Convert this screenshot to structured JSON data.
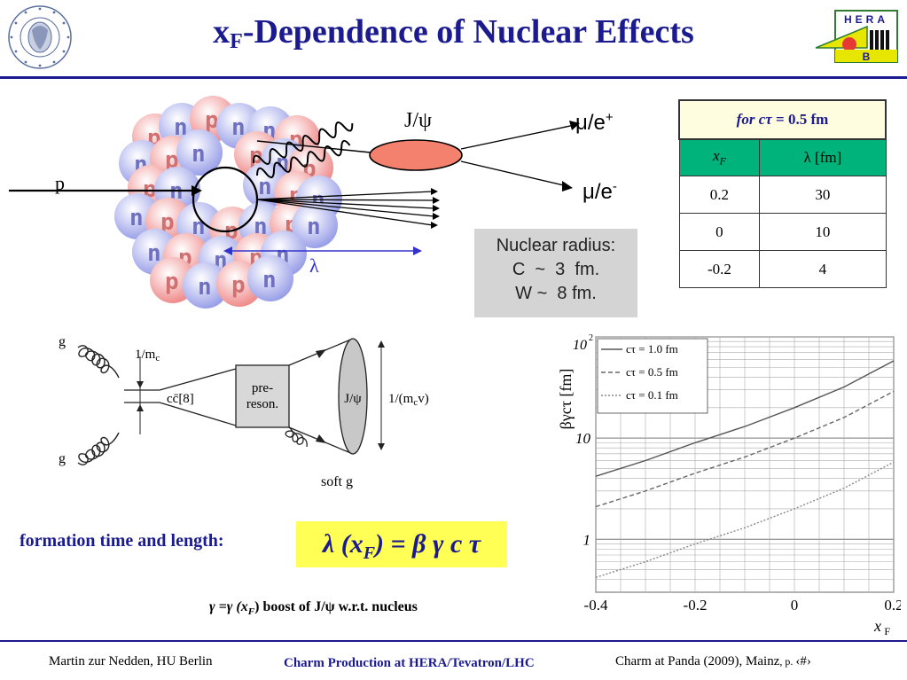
{
  "title": {
    "prefix": "x",
    "sub": "F",
    "rest": "-Dependence of Nuclear Effects"
  },
  "nucleus_diagram": {
    "label_p": "p",
    "label_jpsi": "J/ψ",
    "label_mu_plus": "μ/e",
    "sup_plus": "+",
    "label_mu_minus": "μ/e",
    "sup_minus": "-",
    "label_lambda": "λ",
    "nucleon_p": "p",
    "nucleon_n": "n"
  },
  "radius_box": {
    "line1": "Nuclear radius:",
    "line2": "C  ~  3  fm.",
    "line3": "W ~  8 fm."
  },
  "lambda_table": {
    "caption_prefix": "for c",
    "caption_tau": "τ",
    "caption_suffix": " = 0.5 fm",
    "col1": "x",
    "col1_sub": "F",
    "col2": "λ [fm]",
    "rows": [
      {
        "xf": "0.2",
        "lambda": "30"
      },
      {
        "xf": "0",
        "lambda": "10"
      },
      {
        "xf": "-0.2",
        "lambda": "4"
      }
    ]
  },
  "feynman": {
    "g_top": "g",
    "g_bottom": "g",
    "inv_mc": "1/m",
    "inv_mc_sub": "c",
    "ccbar": "cc̄[8]",
    "preres1": "pre-",
    "preres2": "reson.",
    "jpsi": "J/ψ",
    "inv_mcv": "1/(m",
    "inv_mcv_sub": "c",
    "inv_mcv_end": "v)",
    "soft_g": "soft g"
  },
  "chart_data": {
    "type": "line",
    "ylabel": "βγcτ [fm]",
    "xlabel": "x",
    "xlabel_sub": "F",
    "xlim": [
      -0.4,
      0.2
    ],
    "ylim": [
      0.3,
      100
    ],
    "yscale": "log",
    "grid": true,
    "legend_placement": "top-left",
    "x_ticks": [
      "-0.4",
      "-0.2",
      "0",
      "0.2"
    ],
    "y_ticks": [
      "1",
      "10",
      "10"
    ],
    "y_top_exp": "2",
    "series": [
      {
        "name": "cτ = 1.0 fm",
        "dash": "solid",
        "color": "#555555",
        "x": [
          -0.4,
          -0.3,
          -0.2,
          -0.1,
          0.0,
          0.1,
          0.2
        ],
        "y": [
          4.2,
          6.0,
          9.0,
          13.0,
          20.0,
          32.0,
          58.0
        ]
      },
      {
        "name": "cτ = 0.5 fm",
        "dash": "dashed",
        "color": "#666666",
        "x": [
          -0.4,
          -0.3,
          -0.2,
          -0.1,
          0.0,
          0.1,
          0.2
        ],
        "y": [
          2.1,
          3.0,
          4.5,
          6.5,
          10.0,
          16.0,
          29.0
        ]
      },
      {
        "name": "cτ = 0.1 fm",
        "dash": "dotted",
        "color": "#888888",
        "x": [
          -0.4,
          -0.3,
          -0.2,
          -0.1,
          0.0,
          0.1,
          0.2
        ],
        "y": [
          0.42,
          0.6,
          0.9,
          1.3,
          2.0,
          3.2,
          5.8
        ]
      }
    ]
  },
  "formation": {
    "label": "formation time and length:",
    "formula": "λ (x",
    "formula_sub": "F",
    "formula_end": ") = β γ c  τ"
  },
  "gamma_note": "γ =γ (x",
  "gamma_note_sub": "F",
  "gamma_note_end": ") boost of J/ψ   w.r.t.  nucleus",
  "footer": {
    "left": "Martin zur Nedden, HU Berlin",
    "center": "Charm Production at HERA/Tevatron/LHC",
    "right": "Charm at Panda (2009), Mainz",
    "page_prefix": ", p. ",
    "page": "‹#›"
  },
  "logos": {
    "seal": "seal-logo",
    "hera_text": "HERA",
    "hera_b": "B"
  },
  "colors": {
    "title": "#1b1b8f",
    "table_header": "#00b37a",
    "formula_bg": "#ffff55",
    "ellipse": "#f4806e"
  }
}
